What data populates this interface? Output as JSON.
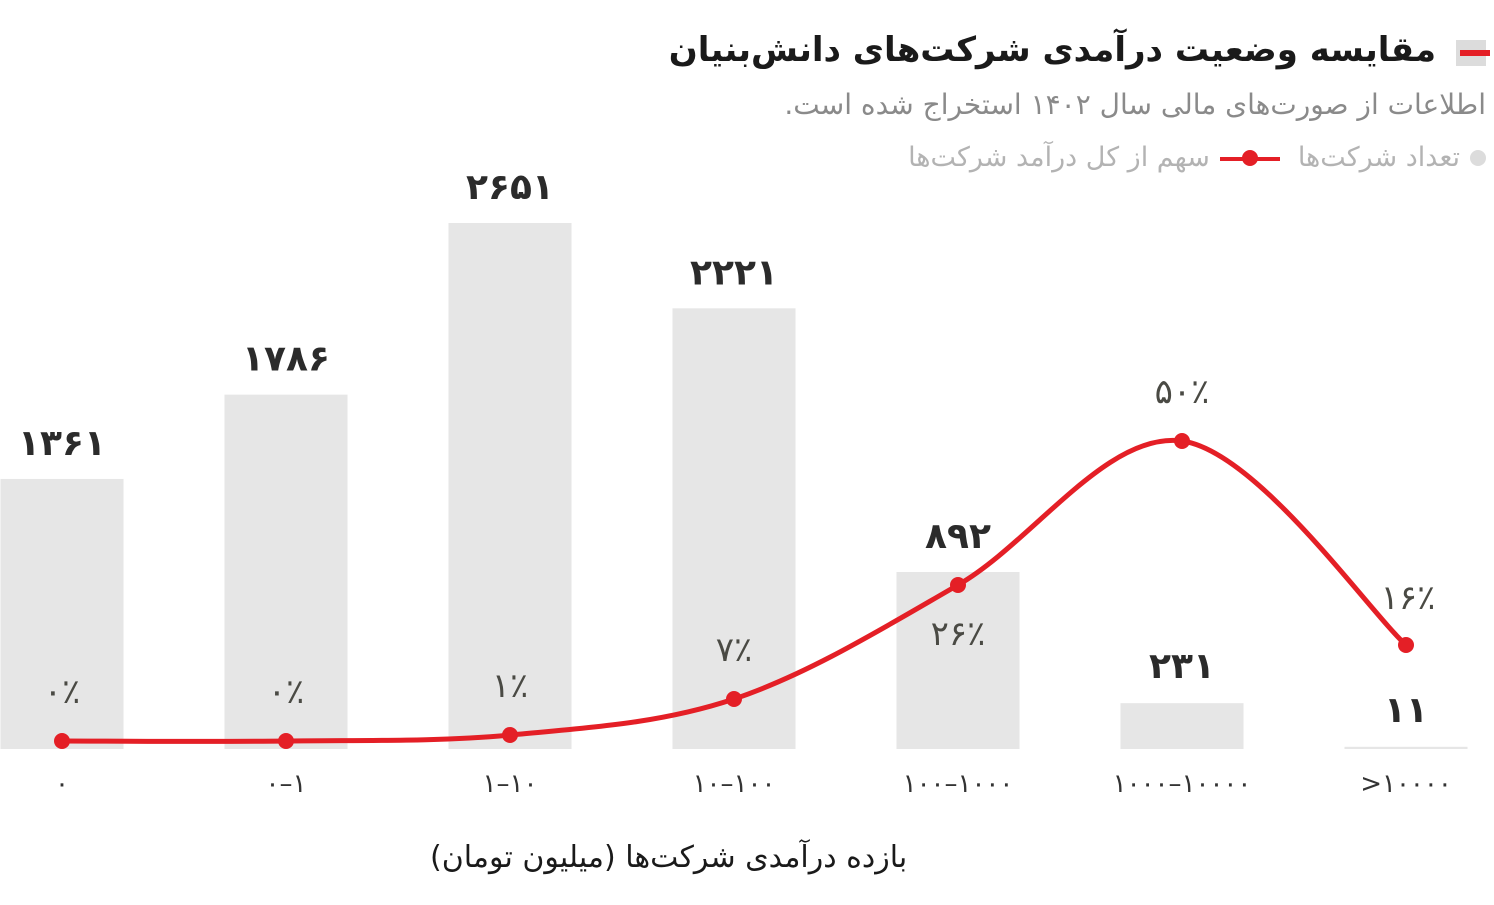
{
  "title": "مقایسه وضعیت درآمدی شرکت‌های دانش‌بنیان",
  "subtitle": "اطلاعات از صورت‌های مالی سال ۱۴۰۲ استخراج شده است.",
  "legend": {
    "share_label": "سهم از کل درآمد شرکت‌ها",
    "count_label": "تعداد شرکت‌ها"
  },
  "colors": {
    "bar": "#e6e6e6",
    "line": "#e41f26",
    "count_text": "#2b2b2b",
    "share_text": "#4a4a44"
  },
  "chart_data": {
    "type": "bar",
    "categories": [
      "۰",
      "۰–۱",
      "۱–۱۰",
      "۱۰–۱۰۰",
      "۱۰۰–۱۰۰۰",
      "۱۰۰۰–۱۰۰۰۰",
      ">۱۰۰۰۰"
    ],
    "xlabel": "بازده درآمدی شرکت‌ها (میلیون تومان)",
    "series": [
      {
        "name": "تعداد شرکت‌ها",
        "kind": "bar",
        "values": [
          1361,
          1786,
          2651,
          2221,
          892,
          231,
          11
        ],
        "labels": [
          "۱۳۶۱",
          "۱۷۸۶",
          "۲۶۵۱",
          "۲۲۲۱",
          "۸۹۲",
          "۲۳۱",
          "۱۱"
        ]
      },
      {
        "name": "سهم از کل درآمد شرکت‌ها",
        "kind": "line",
        "values": [
          0,
          0,
          1,
          7,
          26,
          50,
          16
        ],
        "labels": [
          "۰٪",
          "۰٪",
          "۱٪",
          "۷٪",
          "۲۶٪",
          "۵۰٪",
          "۱۶٪"
        ]
      }
    ],
    "ylim": [
      0,
      2651
    ]
  }
}
